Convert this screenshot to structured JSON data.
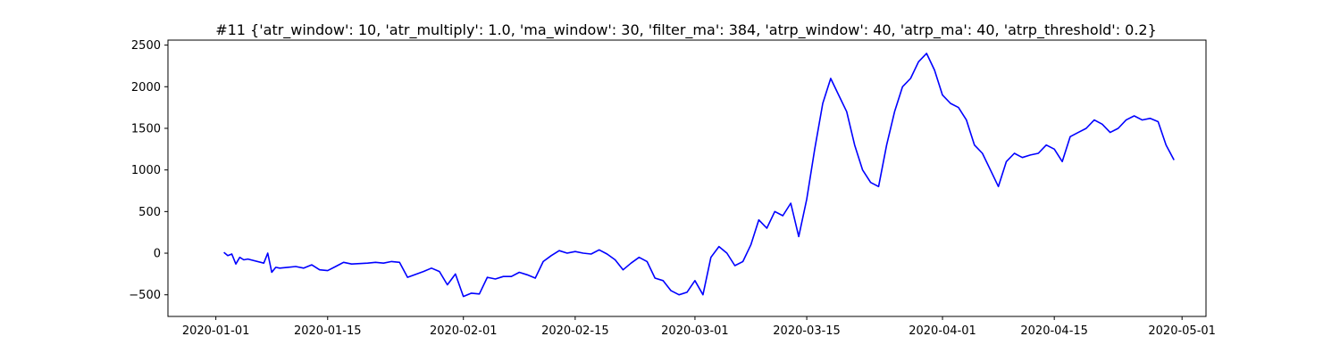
{
  "chart_data": {
    "type": "line",
    "title": "#11 {'atr_window': 10, 'atr_multiply': 1.0, 'ma_window': 30, 'filter_ma': 384, 'atrp_window': 40, 'atrp_ma': 40, 'atrp_threshold': 0.2}",
    "xlabel": "",
    "ylabel": "",
    "xlim": [
      "2019-12-26",
      "2020-05-04"
    ],
    "ylim": [
      -760,
      2560
    ],
    "x_ticks": [
      "2020-01-01",
      "2020-01-15",
      "2020-02-01",
      "2020-02-15",
      "2020-03-01",
      "2020-03-15",
      "2020-04-01",
      "2020-04-15",
      "2020-05-01"
    ],
    "y_ticks": [
      -500,
      0,
      500,
      1000,
      1500,
      2000,
      2500
    ],
    "grid": false,
    "color": "#0000ff",
    "series": [
      {
        "x": [
          "2020-01-02",
          "2020-01-02 12:00",
          "2020-01-03",
          "2020-01-03 12:00",
          "2020-01-04",
          "2020-01-04 12:00",
          "2020-01-05",
          "2020-01-07",
          "2020-01-07 12:00",
          "2020-01-08",
          "2020-01-08 12:00",
          "2020-01-09",
          "2020-01-10",
          "2020-01-11",
          "2020-01-12",
          "2020-01-13",
          "2020-01-14",
          "2020-01-15",
          "2020-01-16",
          "2020-01-17",
          "2020-01-18",
          "2020-01-20",
          "2020-01-21",
          "2020-01-22",
          "2020-01-23",
          "2020-01-24",
          "2020-01-25",
          "2020-01-27",
          "2020-01-28",
          "2020-01-29",
          "2020-01-30",
          "2020-01-31",
          "2020-02-01",
          "2020-02-02",
          "2020-02-03",
          "2020-02-04",
          "2020-02-05",
          "2020-02-06",
          "2020-02-07",
          "2020-02-08",
          "2020-02-09",
          "2020-02-10",
          "2020-02-11",
          "2020-02-12",
          "2020-02-13",
          "2020-02-14",
          "2020-02-15",
          "2020-02-16",
          "2020-02-17",
          "2020-02-18",
          "2020-02-19",
          "2020-02-20",
          "2020-02-21",
          "2020-02-22",
          "2020-02-23",
          "2020-02-24",
          "2020-02-25",
          "2020-02-26",
          "2020-02-27",
          "2020-02-28",
          "2020-02-29",
          "2020-03-01",
          "2020-03-02",
          "2020-03-03",
          "2020-03-04",
          "2020-03-05",
          "2020-03-06",
          "2020-03-07",
          "2020-03-08",
          "2020-03-09",
          "2020-03-10",
          "2020-03-11",
          "2020-03-12",
          "2020-03-13",
          "2020-03-14",
          "2020-03-15",
          "2020-03-16",
          "2020-03-17",
          "2020-03-18",
          "2020-03-19",
          "2020-03-20",
          "2020-03-21",
          "2020-03-22",
          "2020-03-23",
          "2020-03-24",
          "2020-03-25",
          "2020-03-26",
          "2020-03-27",
          "2020-03-28",
          "2020-03-29",
          "2020-03-30",
          "2020-03-31",
          "2020-04-01",
          "2020-04-02",
          "2020-04-03",
          "2020-04-04",
          "2020-04-05",
          "2020-04-06",
          "2020-04-07",
          "2020-04-08",
          "2020-04-09",
          "2020-04-10",
          "2020-04-11",
          "2020-04-12",
          "2020-04-13",
          "2020-04-14",
          "2020-04-15",
          "2020-04-16",
          "2020-04-17",
          "2020-04-18",
          "2020-04-19",
          "2020-04-20",
          "2020-04-21",
          "2020-04-22",
          "2020-04-23",
          "2020-04-24",
          "2020-04-25",
          "2020-04-26",
          "2020-04-27",
          "2020-04-28",
          "2020-04-29",
          "2020-04-30"
        ],
        "y": [
          10,
          -30,
          -10,
          -130,
          -50,
          -80,
          -70,
          -120,
          0,
          -230,
          -170,
          -180,
          -170,
          -160,
          -180,
          -140,
          -200,
          -210,
          -160,
          -110,
          -130,
          -120,
          -110,
          -120,
          -100,
          -110,
          -290,
          -220,
          -180,
          -220,
          -380,
          -250,
          -520,
          -480,
          -490,
          -290,
          -310,
          -280,
          -280,
          -230,
          -260,
          -300,
          -100,
          -30,
          30,
          0,
          20,
          0,
          -10,
          40,
          -10,
          -80,
          -200,
          -120,
          -50,
          -100,
          -300,
          -330,
          -450,
          -500,
          -470,
          -330,
          -500,
          -50,
          80,
          0,
          -150,
          -100,
          100,
          400,
          300,
          500,
          450,
          600,
          200,
          650,
          1250,
          1800,
          2100,
          1900,
          1700,
          1300,
          1000,
          850,
          800,
          1300,
          1700,
          2000,
          2100,
          2300,
          2400,
          2200,
          1900,
          1800,
          1750,
          1600,
          1300,
          1200,
          1000,
          800,
          1100,
          1200,
          1150,
          1180,
          1200,
          1300,
          1250,
          1100,
          1400,
          1450,
          1500,
          1600,
          1550,
          1450,
          1500,
          1600,
          1650,
          1600,
          1620,
          1580,
          1300,
          1120
        ]
      }
    ]
  }
}
